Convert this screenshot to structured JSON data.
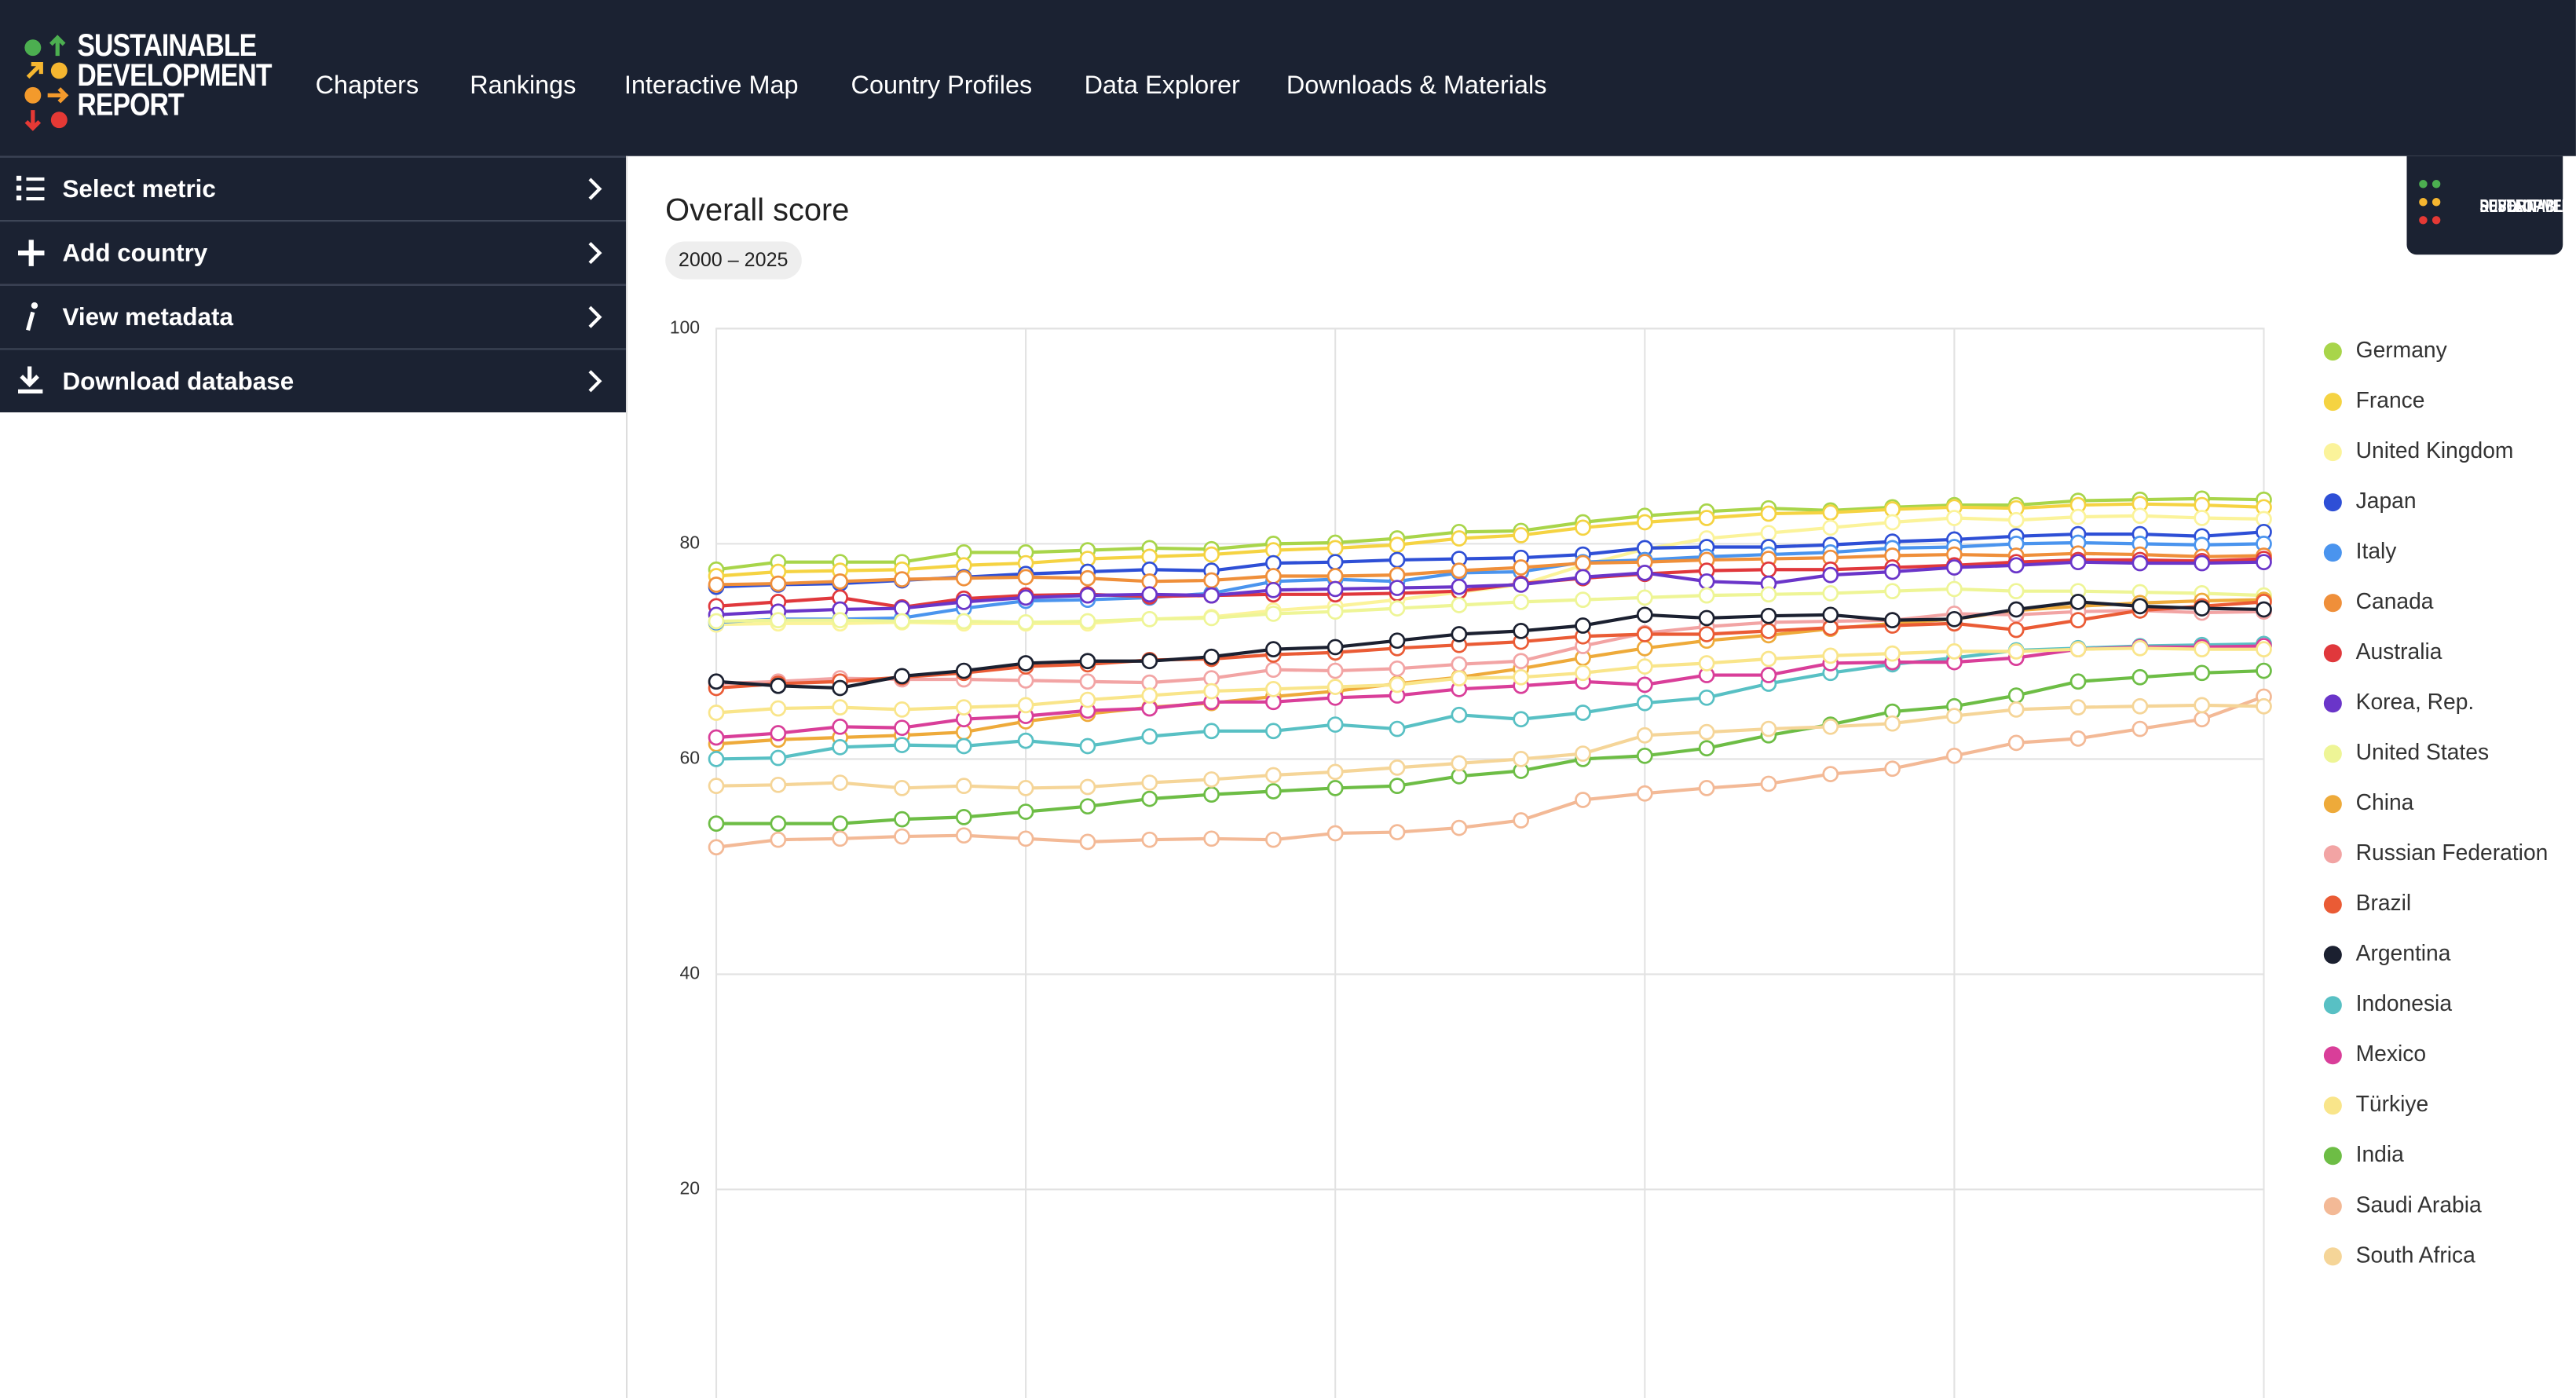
{
  "header": {
    "logo": [
      "SUSTAINABLE",
      "DEVELOPMENT",
      "REPORT"
    ],
    "nav": [
      "Chapters",
      "Rankings",
      "Interactive Map",
      "Country Profiles",
      "Data Explorer",
      "Downloads & Materials"
    ]
  },
  "sidebar": {
    "items": [
      "Select metric",
      "Add country",
      "View metadata",
      "Download database"
    ]
  },
  "chart_data": {
    "type": "line",
    "title": "Overall score",
    "subtitle": "2000 – 2025",
    "ylim": [
      0,
      100
    ],
    "yticks": [
      20,
      40,
      60,
      80,
      100
    ],
    "grid": true,
    "legend": "right",
    "series": [
      {
        "name": "Germany",
        "color": "#a8d54a",
        "values": [
          77.6,
          78.3,
          78.3,
          78.3,
          79.2,
          79.2,
          79.4,
          79.6,
          79.5,
          80.0,
          80.1,
          80.5,
          81.1,
          81.2,
          82.0,
          82.6,
          83.0,
          83.3,
          83.1,
          83.4,
          83.6,
          83.6,
          84.0,
          84.1,
          84.2,
          84.1
        ]
      },
      {
        "name": "France",
        "color": "#f5d342",
        "values": [
          77.0,
          77.4,
          77.5,
          77.6,
          78.0,
          78.2,
          78.6,
          78.8,
          79.0,
          79.4,
          79.6,
          79.9,
          80.5,
          80.8,
          81.5,
          82.0,
          82.4,
          82.8,
          82.9,
          83.2,
          83.4,
          83.3,
          83.6,
          83.7,
          83.6,
          83.4
        ]
      },
      {
        "name": "United Kingdom",
        "color": "#fbf39a",
        "values": [
          72.5,
          72.6,
          72.6,
          72.7,
          72.6,
          72.6,
          72.6,
          73.0,
          73.2,
          73.8,
          74.2,
          74.8,
          75.5,
          76.2,
          78.0,
          79.5,
          80.5,
          81.0,
          81.5,
          82.0,
          82.4,
          82.2,
          82.5,
          82.6,
          82.4,
          82.3
        ]
      },
      {
        "name": "Japan",
        "color": "#2e4fd6",
        "values": [
          76.0,
          76.2,
          76.3,
          76.6,
          76.9,
          77.2,
          77.4,
          77.6,
          77.5,
          78.2,
          78.3,
          78.5,
          78.6,
          78.7,
          79.0,
          79.6,
          79.7,
          79.7,
          79.9,
          80.2,
          80.4,
          80.7,
          80.9,
          80.9,
          80.7,
          81.1
        ]
      },
      {
        "name": "Italy",
        "color": "#4a94ee",
        "values": [
          72.7,
          73.0,
          73.0,
          73.1,
          74.0,
          74.7,
          74.8,
          75.0,
          75.4,
          76.5,
          76.7,
          76.5,
          77.3,
          77.4,
          78.3,
          78.5,
          78.8,
          79.0,
          79.2,
          79.6,
          79.7,
          80.0,
          80.1,
          80.0,
          79.9,
          80.0
        ]
      },
      {
        "name": "Canada",
        "color": "#ef8f3a",
        "values": [
          76.2,
          76.3,
          76.5,
          76.7,
          76.8,
          76.9,
          76.8,
          76.5,
          76.6,
          77.0,
          77.0,
          77.1,
          77.5,
          77.8,
          78.2,
          78.3,
          78.5,
          78.6,
          78.7,
          78.9,
          79.0,
          78.9,
          79.1,
          79.0,
          78.8,
          78.9
        ]
      },
      {
        "name": "Australia",
        "color": "#e0383c",
        "values": [
          74.2,
          74.6,
          75.0,
          74.1,
          74.9,
          75.2,
          75.3,
          75.1,
          75.2,
          75.3,
          75.3,
          75.4,
          75.6,
          76.3,
          76.8,
          77.2,
          77.5,
          77.6,
          77.6,
          77.8,
          78.0,
          78.3,
          78.5,
          78.5,
          78.4,
          78.6
        ]
      },
      {
        "name": "Korea, Rep.",
        "color": "#6a35c9",
        "values": [
          73.4,
          73.7,
          73.9,
          74.0,
          74.6,
          75.0,
          75.2,
          75.3,
          75.2,
          75.7,
          75.8,
          75.9,
          76.0,
          76.2,
          76.9,
          77.3,
          76.5,
          76.3,
          77.1,
          77.4,
          77.8,
          78.0,
          78.3,
          78.2,
          78.2,
          78.3
        ]
      },
      {
        "name": "United States",
        "color": "#eef596",
        "values": [
          72.8,
          72.9,
          72.9,
          72.8,
          72.8,
          72.7,
          72.8,
          73.0,
          73.1,
          73.5,
          73.7,
          74.0,
          74.3,
          74.6,
          74.8,
          75.0,
          75.2,
          75.3,
          75.4,
          75.6,
          75.8,
          75.6,
          75.6,
          75.5,
          75.4,
          75.2
        ]
      },
      {
        "name": "China",
        "color": "#eeaa3a",
        "values": [
          61.4,
          61.8,
          62.0,
          62.2,
          62.5,
          63.5,
          64.2,
          64.8,
          65.2,
          65.8,
          66.3,
          67.0,
          67.6,
          68.4,
          69.4,
          70.3,
          71.0,
          71.5,
          72.1,
          72.6,
          73.0,
          73.8,
          74.2,
          74.5,
          74.7,
          74.8
        ]
      },
      {
        "name": "Russian Federation",
        "color": "#f2a4a4",
        "values": [
          67.0,
          67.2,
          67.5,
          67.4,
          67.4,
          67.3,
          67.2,
          67.1,
          67.5,
          68.3,
          68.2,
          68.4,
          68.8,
          69.1,
          70.5,
          71.7,
          72.3,
          72.7,
          72.8,
          72.9,
          73.5,
          73.4,
          73.7,
          73.8,
          73.6,
          73.7
        ]
      },
      {
        "name": "Brazil",
        "color": "#ea5b35",
        "values": [
          66.6,
          67.0,
          67.2,
          67.6,
          68.0,
          68.6,
          68.8,
          69.2,
          69.3,
          69.7,
          69.9,
          70.3,
          70.6,
          70.9,
          71.4,
          71.6,
          71.6,
          71.9,
          72.2,
          72.4,
          72.6,
          72.0,
          72.9,
          73.8,
          74.2,
          74.6
        ]
      },
      {
        "name": "Argentina",
        "color": "#1b2030",
        "values": [
          67.2,
          66.8,
          66.6,
          67.7,
          68.2,
          68.9,
          69.1,
          69.1,
          69.5,
          70.2,
          70.4,
          71.0,
          71.6,
          71.9,
          72.4,
          73.4,
          73.1,
          73.3,
          73.4,
          72.9,
          73.0,
          73.9,
          74.6,
          74.2,
          74.0,
          73.9
        ]
      },
      {
        "name": "Indonesia",
        "color": "#58c0c4",
        "values": [
          60.0,
          60.1,
          61.1,
          61.3,
          61.2,
          61.7,
          61.2,
          62.1,
          62.6,
          62.6,
          63.2,
          62.8,
          64.1,
          63.7,
          64.3,
          65.2,
          65.7,
          67.0,
          68.0,
          68.8,
          69.4,
          70.1,
          70.3,
          70.5,
          70.6,
          70.7
        ]
      },
      {
        "name": "Mexico",
        "color": "#d93e99",
        "values": [
          62.0,
          62.4,
          63.0,
          62.9,
          63.7,
          64.0,
          64.5,
          64.7,
          65.3,
          65.3,
          65.7,
          65.9,
          66.5,
          66.8,
          67.2,
          66.9,
          67.8,
          67.8,
          68.9,
          69.0,
          69.0,
          69.4,
          70.2,
          70.4,
          70.4,
          70.5
        ]
      },
      {
        "name": "Türkiye",
        "color": "#f9e58a",
        "values": [
          64.3,
          64.7,
          64.8,
          64.6,
          64.8,
          65.0,
          65.5,
          65.9,
          66.3,
          66.5,
          66.7,
          66.9,
          67.5,
          67.6,
          68.0,
          68.6,
          68.9,
          69.3,
          69.6,
          69.8,
          70.0,
          70.0,
          70.2,
          70.3,
          70.2,
          70.2
        ]
      },
      {
        "name": "India",
        "color": "#6dbd45",
        "values": [
          54.0,
          54.0,
          54.0,
          54.4,
          54.6,
          55.1,
          55.6,
          56.3,
          56.7,
          57.0,
          57.3,
          57.5,
          58.4,
          58.9,
          60.0,
          60.3,
          61.0,
          62.2,
          63.2,
          64.4,
          64.9,
          65.9,
          67.2,
          67.6,
          68.0,
          68.2
        ]
      },
      {
        "name": "Saudi Arabia",
        "color": "#f3b996",
        "values": [
          51.8,
          52.5,
          52.6,
          52.8,
          52.9,
          52.6,
          52.3,
          52.5,
          52.6,
          52.5,
          53.1,
          53.2,
          53.6,
          54.3,
          56.2,
          56.8,
          57.3,
          57.7,
          58.6,
          59.1,
          60.3,
          61.5,
          61.9,
          62.8,
          63.7,
          65.8
        ]
      },
      {
        "name": "South Africa",
        "color": "#f5d598",
        "values": [
          57.5,
          57.6,
          57.8,
          57.3,
          57.5,
          57.3,
          57.4,
          57.8,
          58.1,
          58.5,
          58.8,
          59.2,
          59.6,
          60.0,
          60.5,
          62.2,
          62.5,
          62.8,
          63.0,
          63.3,
          64.0,
          64.6,
          64.8,
          64.9,
          65.0,
          64.9
        ]
      }
    ]
  }
}
